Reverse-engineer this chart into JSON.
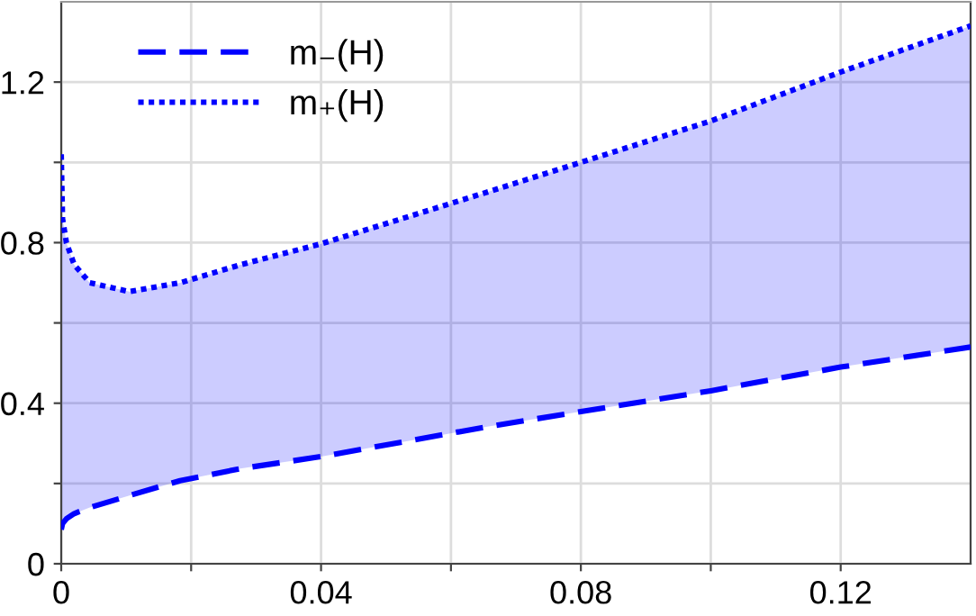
{
  "chart_data": {
    "type": "line",
    "x": [
      0,
      0.0002,
      0.0008,
      0.002,
      0.0044,
      0.0105,
      0.0183,
      0.0276,
      0.04,
      0.0658,
      0.08,
      0.1,
      0.12,
      0.14
    ],
    "series": [
      {
        "name": "m₋(H)",
        "color": "#0000ff",
        "line_style": "dashed",
        "values": [
          0.085,
          0.1,
          0.112,
          0.125,
          0.14,
          0.17,
          0.207,
          0.237,
          0.267,
          0.342,
          0.379,
          0.431,
          0.49,
          0.54
        ]
      },
      {
        "name": "m₊(H)",
        "color": "#0000ff",
        "line_style": "dotted",
        "values": [
          1.02,
          0.86,
          0.8,
          0.745,
          0.7,
          0.678,
          0.7,
          0.745,
          0.797,
          0.927,
          1.0,
          1.103,
          1.225,
          1.34
        ],
        "lower": [
          0.085,
          0.1,
          0.112,
          0.125,
          0.14,
          0.17,
          0.207,
          0.237,
          0.267,
          0.342,
          0.379,
          0.431,
          0.49,
          0.54
        ],
        "upper": [
          1.02,
          0.86,
          0.8,
          0.745,
          0.7,
          0.678,
          0.7,
          0.745,
          0.797,
          0.927,
          1.0,
          1.103,
          1.225,
          1.34
        ]
      }
    ],
    "xlim": [
      0,
      0.14
    ],
    "ylim": [
      0,
      1.4
    ],
    "xticks": [
      0,
      {
        "value": 0.02,
        "label": null
      },
      0.04,
      {
        "value": 0.06,
        "label": null
      },
      0.08,
      {
        "value": 0.1,
        "label": null
      },
      0.12
    ],
    "yticks": [
      0,
      {
        "value": 0.2,
        "label": null
      },
      0.4,
      {
        "value": 0.6,
        "label": null
      },
      0.8,
      {
        "value": 1.0,
        "label": null
      },
      1.2
    ],
    "grid": true,
    "legend": "top left"
  }
}
